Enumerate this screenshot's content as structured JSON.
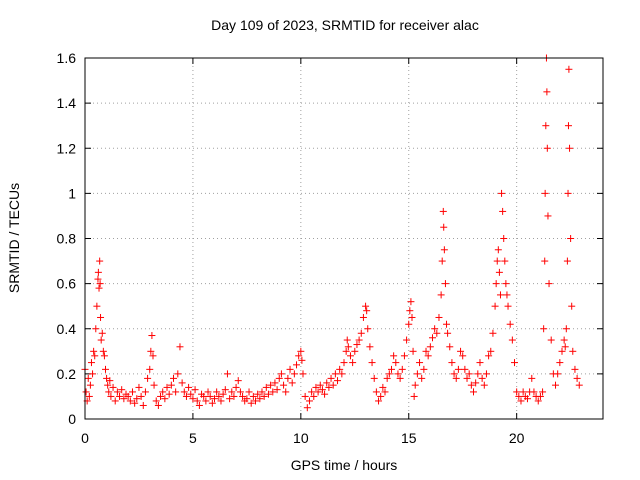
{
  "chart_data": {
    "type": "scatter",
    "title": "Day 109 of 2023, SRMTID for receiver alac",
    "xlabel": "GPS time / hours",
    "ylabel": "SRMTID / TECUs",
    "xlim": [
      0,
      24
    ],
    "ylim": [
      0,
      1.6
    ],
    "xticks": [
      0,
      5,
      10,
      15,
      20
    ],
    "yticks": [
      0,
      0.2,
      0.4,
      0.6,
      0.8,
      1,
      1.2,
      1.4,
      1.6
    ],
    "ytick_labels": [
      "0",
      "0.2",
      "0.4",
      "0.6",
      "0.8",
      "1",
      "1.2",
      "1.4",
      "1.6"
    ],
    "grid": true,
    "marker": "+",
    "color": "#ff0000",
    "series": [
      {
        "name": "SRMTID",
        "points": [
          [
            0.0,
            0.22
          ],
          [
            0.05,
            0.12
          ],
          [
            0.1,
            0.08
          ],
          [
            0.15,
            0.18
          ],
          [
            0.2,
            0.1
          ],
          [
            0.25,
            0.15
          ],
          [
            0.3,
            0.25
          ],
          [
            0.35,
            0.2
          ],
          [
            0.4,
            0.3
          ],
          [
            0.45,
            0.28
          ],
          [
            0.5,
            0.4
          ],
          [
            0.55,
            0.5
          ],
          [
            0.6,
            0.62
          ],
          [
            0.62,
            0.65
          ],
          [
            0.65,
            0.58
          ],
          [
            0.68,
            0.7
          ],
          [
            0.7,
            0.6
          ],
          [
            0.72,
            0.45
          ],
          [
            0.75,
            0.35
          ],
          [
            0.8,
            0.38
          ],
          [
            0.85,
            0.3
          ],
          [
            0.9,
            0.28
          ],
          [
            0.95,
            0.22
          ],
          [
            1.0,
            0.18
          ],
          [
            1.05,
            0.15
          ],
          [
            1.1,
            0.12
          ],
          [
            1.15,
            0.17
          ],
          [
            1.2,
            0.1
          ],
          [
            1.3,
            0.14
          ],
          [
            1.4,
            0.08
          ],
          [
            1.5,
            0.12
          ],
          [
            1.6,
            0.1
          ],
          [
            1.7,
            0.13
          ],
          [
            1.8,
            0.09
          ],
          [
            1.9,
            0.11
          ],
          [
            2.0,
            0.1
          ],
          [
            2.1,
            0.08
          ],
          [
            2.2,
            0.12
          ],
          [
            2.3,
            0.07
          ],
          [
            2.4,
            0.09
          ],
          [
            2.5,
            0.14
          ],
          [
            2.6,
            0.1
          ],
          [
            2.7,
            0.06
          ],
          [
            2.8,
            0.12
          ],
          [
            2.9,
            0.18
          ],
          [
            3.0,
            0.22
          ],
          [
            3.05,
            0.3
          ],
          [
            3.1,
            0.37
          ],
          [
            3.15,
            0.28
          ],
          [
            3.2,
            0.15
          ],
          [
            3.3,
            0.08
          ],
          [
            3.4,
            0.06
          ],
          [
            3.5,
            0.1
          ],
          [
            3.6,
            0.12
          ],
          [
            3.7,
            0.09
          ],
          [
            3.8,
            0.14
          ],
          [
            3.9,
            0.11
          ],
          [
            4.0,
            0.15
          ],
          [
            4.1,
            0.18
          ],
          [
            4.2,
            0.12
          ],
          [
            4.3,
            0.2
          ],
          [
            4.4,
            0.32
          ],
          [
            4.5,
            0.16
          ],
          [
            4.6,
            0.12
          ],
          [
            4.7,
            0.1
          ],
          [
            4.8,
            0.14
          ],
          [
            4.9,
            0.11
          ],
          [
            5.0,
            0.09
          ],
          [
            5.1,
            0.13
          ],
          [
            5.2,
            0.08
          ],
          [
            5.3,
            0.06
          ],
          [
            5.4,
            0.11
          ],
          [
            5.5,
            0.1
          ],
          [
            5.6,
            0.08
          ],
          [
            5.7,
            0.12
          ],
          [
            5.8,
            0.1
          ],
          [
            5.9,
            0.07
          ],
          [
            6.0,
            0.09
          ],
          [
            6.1,
            0.12
          ],
          [
            6.2,
            0.1
          ],
          [
            6.3,
            0.08
          ],
          [
            6.4,
            0.11
          ],
          [
            6.5,
            0.13
          ],
          [
            6.6,
            0.2
          ],
          [
            6.7,
            0.09
          ],
          [
            6.8,
            0.12
          ],
          [
            6.9,
            0.1
          ],
          [
            7.0,
            0.14
          ],
          [
            7.1,
            0.17
          ],
          [
            7.2,
            0.12
          ],
          [
            7.3,
            0.1
          ],
          [
            7.4,
            0.08
          ],
          [
            7.5,
            0.09
          ],
          [
            7.6,
            0.12
          ],
          [
            7.7,
            0.07
          ],
          [
            7.8,
            0.1
          ],
          [
            7.9,
            0.08
          ],
          [
            8.0,
            0.11
          ],
          [
            8.1,
            0.09
          ],
          [
            8.2,
            0.12
          ],
          [
            8.3,
            0.1
          ],
          [
            8.4,
            0.14
          ],
          [
            8.5,
            0.11
          ],
          [
            8.6,
            0.15
          ],
          [
            8.7,
            0.12
          ],
          [
            8.8,
            0.16
          ],
          [
            8.9,
            0.13
          ],
          [
            9.0,
            0.18
          ],
          [
            9.1,
            0.2
          ],
          [
            9.2,
            0.15
          ],
          [
            9.3,
            0.12
          ],
          [
            9.4,
            0.18
          ],
          [
            9.5,
            0.22
          ],
          [
            9.6,
            0.16
          ],
          [
            9.7,
            0.2
          ],
          [
            9.8,
            0.24
          ],
          [
            9.9,
            0.28
          ],
          [
            10.0,
            0.3
          ],
          [
            10.05,
            0.26
          ],
          [
            10.1,
            0.2
          ],
          [
            10.2,
            0.1
          ],
          [
            10.3,
            0.05
          ],
          [
            10.4,
            0.08
          ],
          [
            10.5,
            0.12
          ],
          [
            10.6,
            0.1
          ],
          [
            10.7,
            0.14
          ],
          [
            10.8,
            0.12
          ],
          [
            10.9,
            0.15
          ],
          [
            11.0,
            0.13
          ],
          [
            11.1,
            0.11
          ],
          [
            11.2,
            0.16
          ],
          [
            11.3,
            0.14
          ],
          [
            11.4,
            0.18
          ],
          [
            11.5,
            0.15
          ],
          [
            11.6,
            0.2
          ],
          [
            11.7,
            0.17
          ],
          [
            11.8,
            0.22
          ],
          [
            11.9,
            0.2
          ],
          [
            12.0,
            0.25
          ],
          [
            12.1,
            0.3
          ],
          [
            12.15,
            0.35
          ],
          [
            12.2,
            0.32
          ],
          [
            12.3,
            0.28
          ],
          [
            12.4,
            0.25
          ],
          [
            12.5,
            0.3
          ],
          [
            12.6,
            0.33
          ],
          [
            12.7,
            0.35
          ],
          [
            12.8,
            0.38
          ],
          [
            12.9,
            0.45
          ],
          [
            13.0,
            0.5
          ],
          [
            13.05,
            0.48
          ],
          [
            13.1,
            0.4
          ],
          [
            13.2,
            0.32
          ],
          [
            13.3,
            0.25
          ],
          [
            13.4,
            0.18
          ],
          [
            13.5,
            0.12
          ],
          [
            13.6,
            0.08
          ],
          [
            13.7,
            0.1
          ],
          [
            13.8,
            0.14
          ],
          [
            13.9,
            0.12
          ],
          [
            14.0,
            0.18
          ],
          [
            14.1,
            0.2
          ],
          [
            14.2,
            0.22
          ],
          [
            14.3,
            0.28
          ],
          [
            14.4,
            0.25
          ],
          [
            14.5,
            0.2
          ],
          [
            14.6,
            0.18
          ],
          [
            14.7,
            0.22
          ],
          [
            14.8,
            0.28
          ],
          [
            14.9,
            0.35
          ],
          [
            15.0,
            0.42
          ],
          [
            15.05,
            0.48
          ],
          [
            15.1,
            0.52
          ],
          [
            15.15,
            0.45
          ],
          [
            15.2,
            0.3
          ],
          [
            15.25,
            0.1
          ],
          [
            15.3,
            0.15
          ],
          [
            15.4,
            0.2
          ],
          [
            15.5,
            0.25
          ],
          [
            15.6,
            0.18
          ],
          [
            15.7,
            0.22
          ],
          [
            15.8,
            0.3
          ],
          [
            15.9,
            0.28
          ],
          [
            16.0,
            0.32
          ],
          [
            16.1,
            0.36
          ],
          [
            16.2,
            0.4
          ],
          [
            16.3,
            0.38
          ],
          [
            16.4,
            0.45
          ],
          [
            16.5,
            0.55
          ],
          [
            16.55,
            0.7
          ],
          [
            16.6,
            0.92
          ],
          [
            16.62,
            0.85
          ],
          [
            16.65,
            0.75
          ],
          [
            16.7,
            0.6
          ],
          [
            16.75,
            0.42
          ],
          [
            16.8,
            0.38
          ],
          [
            16.9,
            0.32
          ],
          [
            17.0,
            0.25
          ],
          [
            17.1,
            0.2
          ],
          [
            17.2,
            0.18
          ],
          [
            17.3,
            0.22
          ],
          [
            17.4,
            0.3
          ],
          [
            17.5,
            0.28
          ],
          [
            17.6,
            0.22
          ],
          [
            17.7,
            0.18
          ],
          [
            17.8,
            0.2
          ],
          [
            17.9,
            0.15
          ],
          [
            18.0,
            0.12
          ],
          [
            18.1,
            0.16
          ],
          [
            18.2,
            0.2
          ],
          [
            18.3,
            0.25
          ],
          [
            18.4,
            0.18
          ],
          [
            18.5,
            0.15
          ],
          [
            18.6,
            0.2
          ],
          [
            18.7,
            0.28
          ],
          [
            18.8,
            0.3
          ],
          [
            18.9,
            0.38
          ],
          [
            19.0,
            0.5
          ],
          [
            19.05,
            0.6
          ],
          [
            19.1,
            0.7
          ],
          [
            19.15,
            0.75
          ],
          [
            19.2,
            0.65
          ],
          [
            19.25,
            0.55
          ],
          [
            19.3,
            1.0
          ],
          [
            19.35,
            0.92
          ],
          [
            19.4,
            0.8
          ],
          [
            19.45,
            0.7
          ],
          [
            19.5,
            0.6
          ],
          [
            19.55,
            0.55
          ],
          [
            19.6,
            0.5
          ],
          [
            19.7,
            0.42
          ],
          [
            19.8,
            0.35
          ],
          [
            19.9,
            0.25
          ],
          [
            20.0,
            0.12
          ],
          [
            20.1,
            0.1
          ],
          [
            20.2,
            0.08
          ],
          [
            20.3,
            0.12
          ],
          [
            20.4,
            0.1
          ],
          [
            20.5,
            0.09
          ],
          [
            20.6,
            0.12
          ],
          [
            20.7,
            0.18
          ],
          [
            20.8,
            0.12
          ],
          [
            20.9,
            0.1
          ],
          [
            21.0,
            0.08
          ],
          [
            21.1,
            0.1
          ],
          [
            21.2,
            0.12
          ],
          [
            21.25,
            0.4
          ],
          [
            21.3,
            0.7
          ],
          [
            21.32,
            1.0
          ],
          [
            21.35,
            1.3
          ],
          [
            21.38,
            1.6
          ],
          [
            21.4,
            1.45
          ],
          [
            21.42,
            1.2
          ],
          [
            21.45,
            0.9
          ],
          [
            21.5,
            0.6
          ],
          [
            21.6,
            0.35
          ],
          [
            21.7,
            0.2
          ],
          [
            21.8,
            0.15
          ],
          [
            21.9,
            0.2
          ],
          [
            22.0,
            0.25
          ],
          [
            22.1,
            0.3
          ],
          [
            22.2,
            0.35
          ],
          [
            22.25,
            0.32
          ],
          [
            22.3,
            0.4
          ],
          [
            22.35,
            0.7
          ],
          [
            22.38,
            1.0
          ],
          [
            22.4,
            1.3
          ],
          [
            22.42,
            1.55
          ],
          [
            22.45,
            1.2
          ],
          [
            22.5,
            0.8
          ],
          [
            22.55,
            0.5
          ],
          [
            22.6,
            0.3
          ],
          [
            22.7,
            0.22
          ],
          [
            22.8,
            0.18
          ],
          [
            22.9,
            0.15
          ]
        ]
      }
    ]
  }
}
